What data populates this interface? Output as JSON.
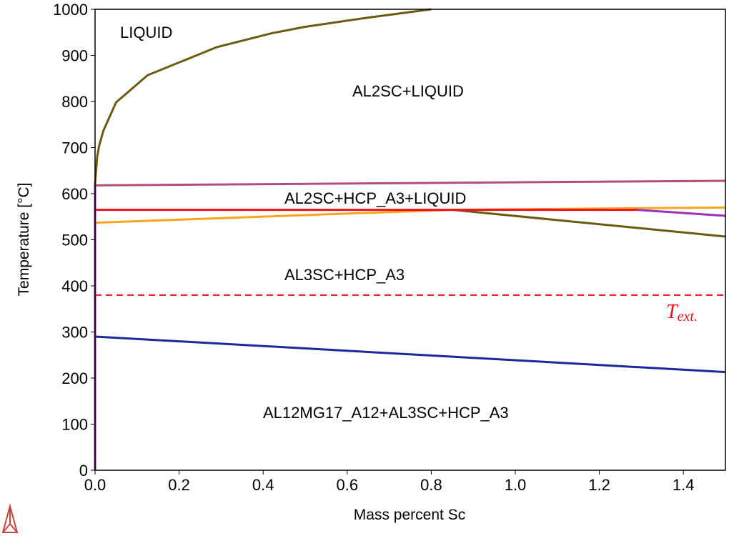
{
  "chart_data": {
    "type": "line",
    "xlabel": "Mass percent Sc",
    "ylabel": "Temperature [°C]",
    "xlim": [
      0,
      1.5
    ],
    "ylim": [
      0,
      1000
    ],
    "xticks": [
      {
        "value": 0,
        "label": "0.0"
      },
      0.2,
      0.4,
      0.6,
      0.8,
      {
        "value": 1,
        "label": "1.0"
      },
      1.2,
      1.4
    ],
    "yticks": [
      0,
      100,
      200,
      300,
      400,
      500,
      600,
      700,
      800,
      900,
      1000
    ],
    "series": [
      {
        "color": "#6b5a12",
        "style": "solid",
        "x": [
          0,
          0.005,
          0.01,
          0.02,
          0.05,
          0.125,
          0.29,
          0.42,
          0.5,
          0.65,
          0.8
        ],
        "values": [
          620,
          680,
          705,
          737,
          798,
          857,
          918,
          948,
          962,
          982,
          1000
        ]
      },
      {
        "color": "#b0507a",
        "style": "solid",
        "x": [
          0,
          1.5
        ],
        "values": [
          618,
          628
        ]
      },
      {
        "color": "#ffa41c",
        "style": "solid",
        "x": [
          0,
          0.85,
          1.5
        ],
        "values": [
          537,
          565,
          570
        ]
      },
      {
        "color": "#6b5a12",
        "style": "solid",
        "x": [
          0.85,
          1.5
        ],
        "values": [
          565,
          507
        ]
      },
      {
        "color": "#9b30c0",
        "style": "solid",
        "x": [
          1.29,
          1.5
        ],
        "values": [
          565,
          552
        ]
      },
      {
        "color": "#e8141e",
        "style": "solid",
        "x": [
          0,
          1.29
        ],
        "values": [
          565,
          565
        ]
      },
      {
        "color": "#1a2a9a",
        "style": "solid",
        "x": [
          0,
          1.5
        ],
        "values": [
          290,
          213
        ]
      },
      {
        "color": "#8a2aa0",
        "style": "solid",
        "x": [
          0,
          0
        ],
        "values": [
          0,
          620
        ]
      },
      {
        "color": "#e8141e",
        "style": "dashed",
        "x": [
          0,
          1.5
        ],
        "values": [
          380,
          380
        ]
      }
    ],
    "annotations": [
      "LIQUID",
      "AL2SC+LIQUID",
      "AL2SC+HCP_A3+LIQUID",
      "AL3SC+HCP_A3",
      "AL12MG17_A12+AL3SC+HCP_A3"
    ],
    "marker_label": {
      "main": "T",
      "sub": "ext."
    }
  }
}
